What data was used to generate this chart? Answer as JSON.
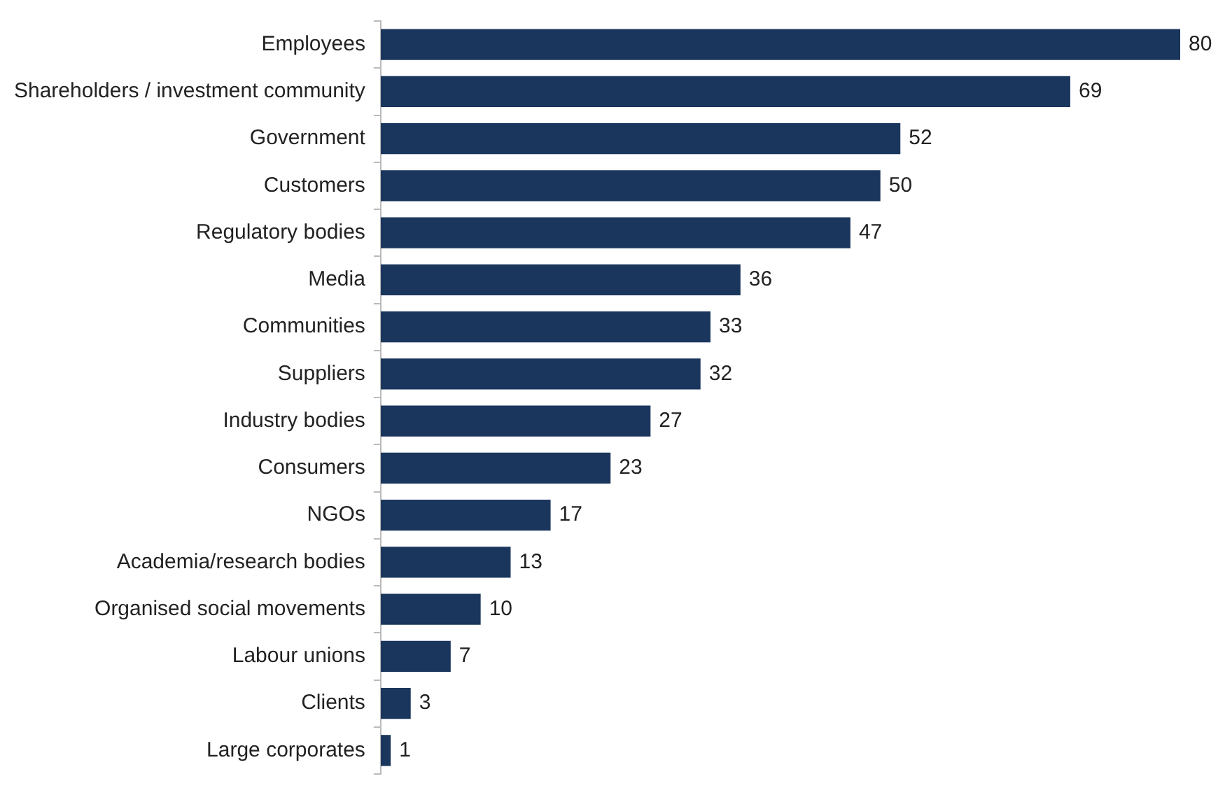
{
  "chart_data": {
    "type": "bar",
    "orientation": "horizontal",
    "categories": [
      "Employees",
      "Shareholders / investment community",
      "Government",
      "Customers",
      "Regulatory bodies",
      "Media",
      "Communities",
      "Suppliers",
      "Industry bodies",
      "Consumers",
      "NGOs",
      "Academia/research bodies",
      "Organised social movements",
      "Labour unions",
      "Clients",
      "Large corporates"
    ],
    "values": [
      80,
      69,
      52,
      50,
      47,
      36,
      33,
      32,
      27,
      23,
      17,
      13,
      10,
      7,
      3,
      1
    ],
    "color": "#1b365d",
    "data_labels": true
  }
}
